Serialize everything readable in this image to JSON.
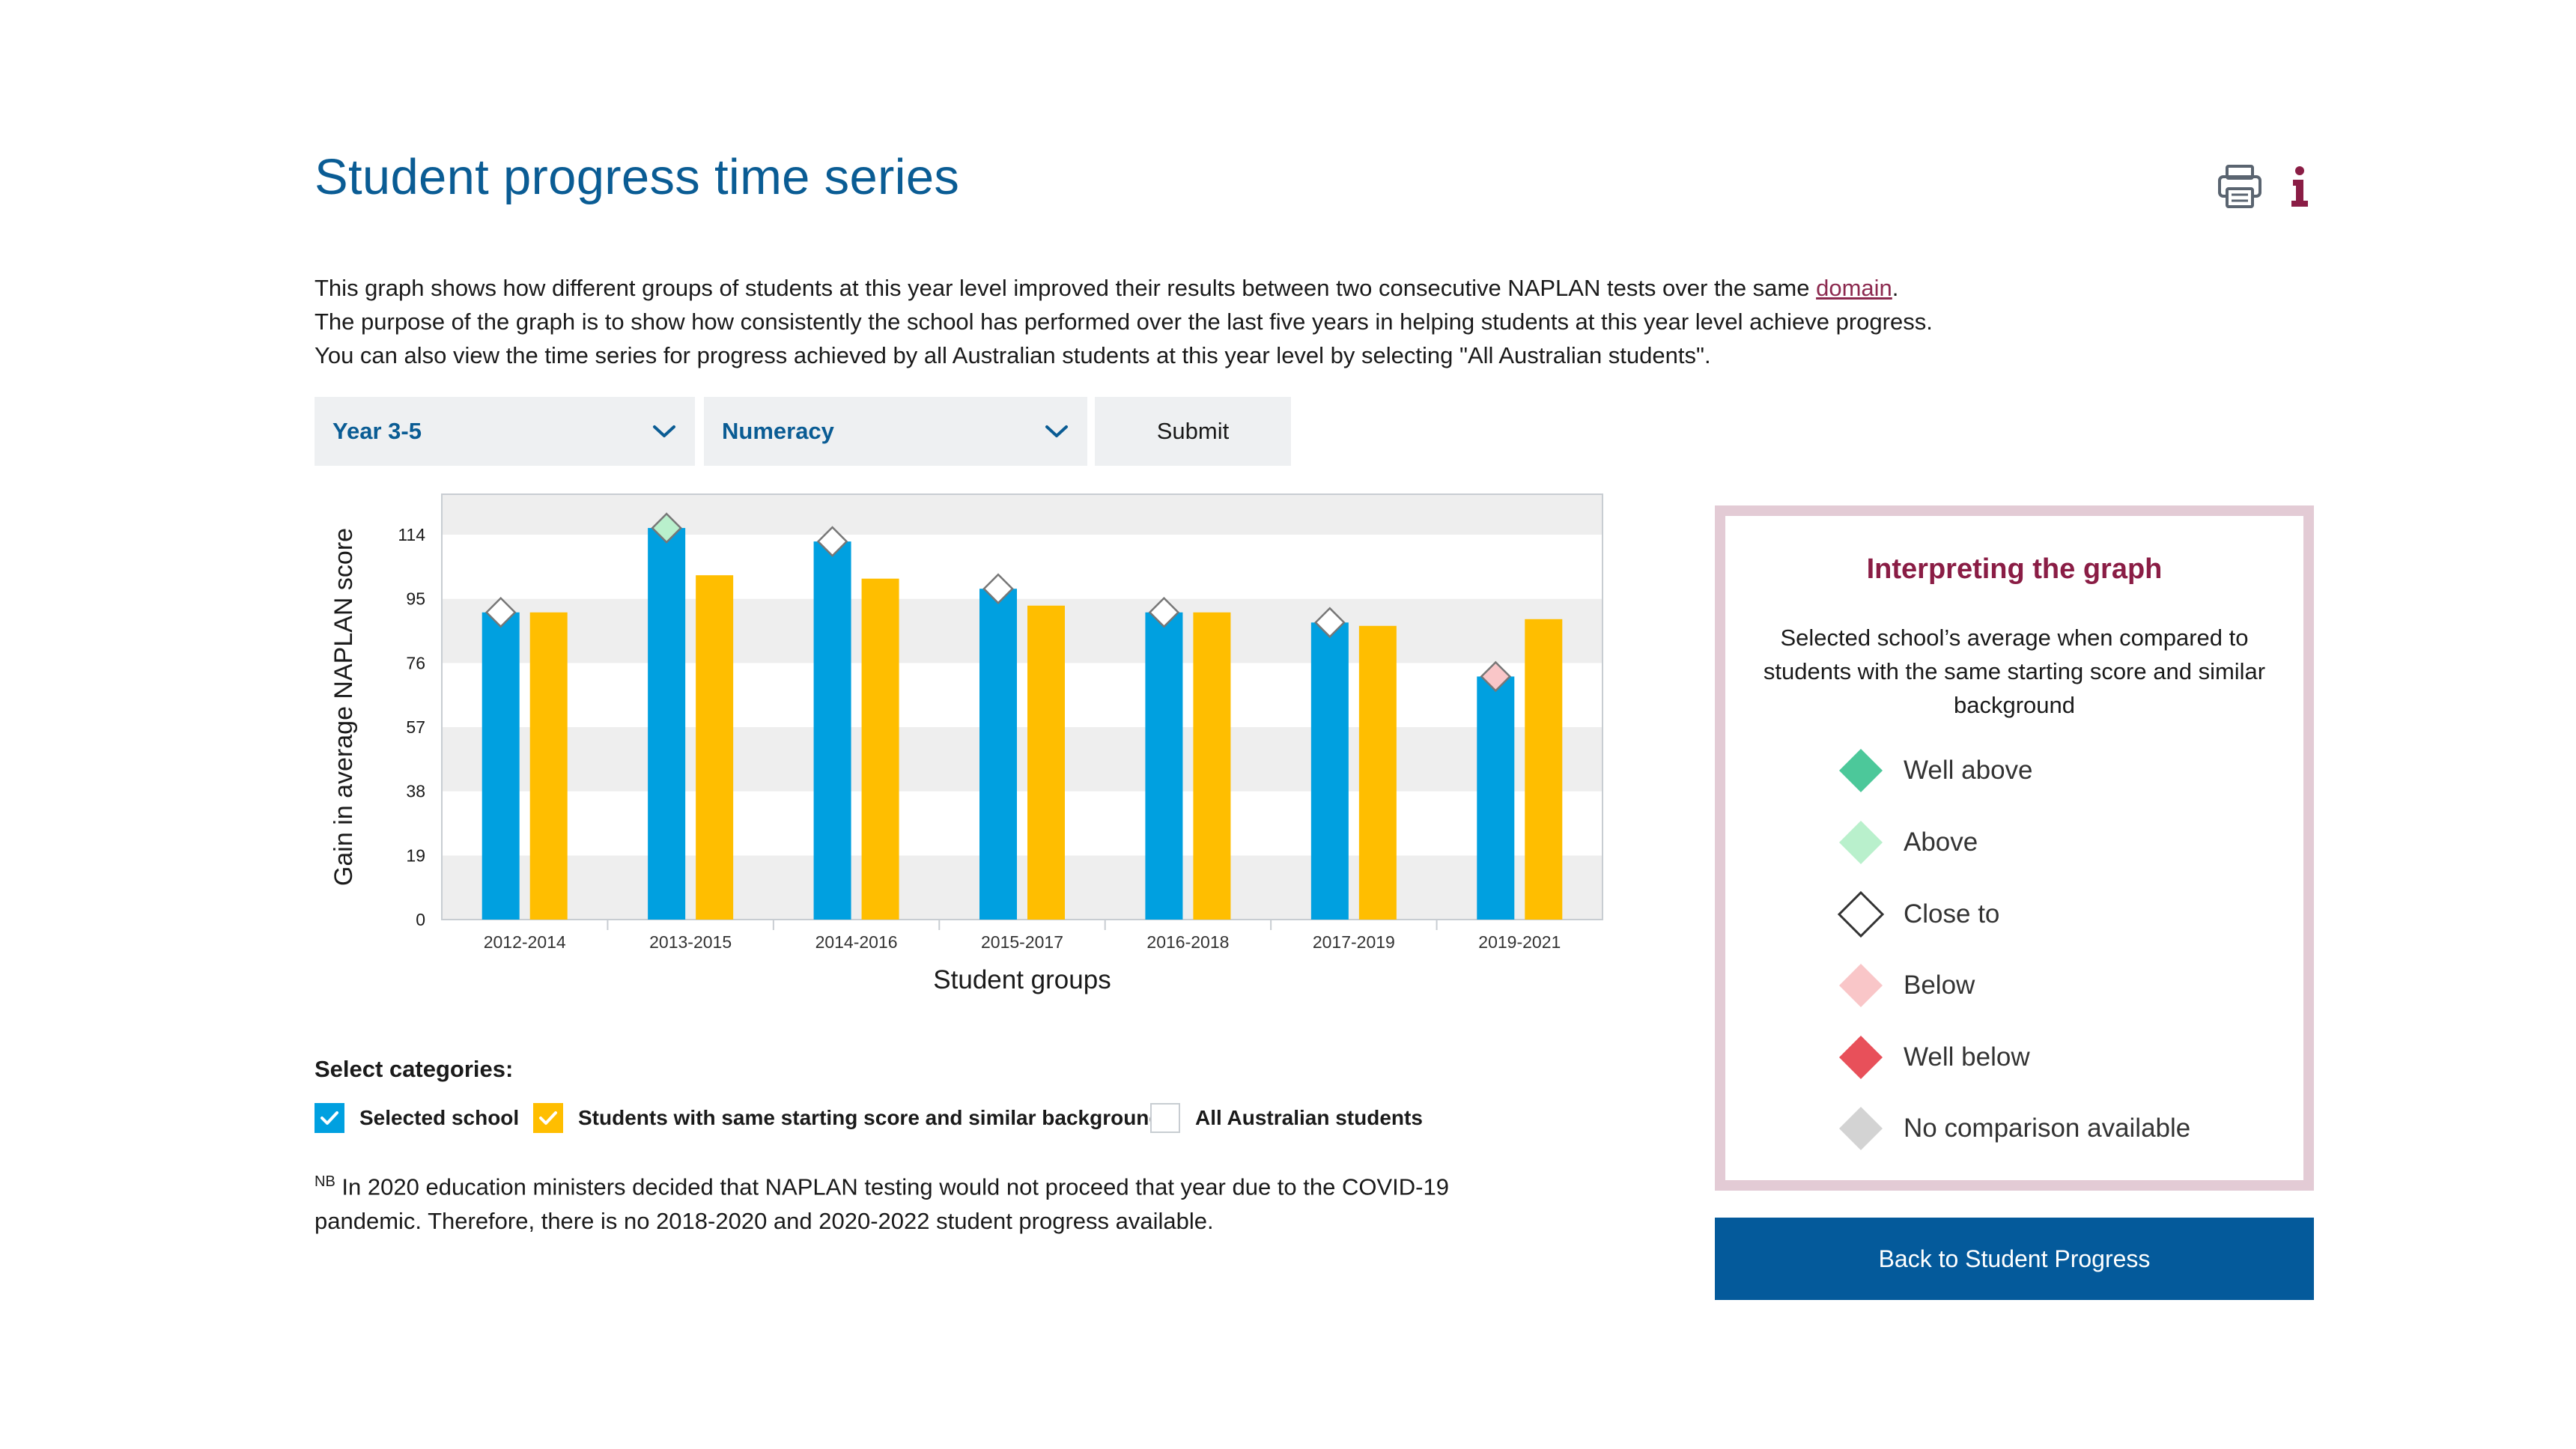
{
  "header": {
    "title": "Student progress time series"
  },
  "icons": {
    "print": "printer-icon",
    "info": "info-icon",
    "dropdown": "chevron-down-icon",
    "check": "check-icon"
  },
  "description": {
    "line1_prefix": "This graph shows how different groups of students at this year level improved their results between two consecutive NAPLAN tests over the same ",
    "domain_link": "domain",
    "line1_suffix": ".",
    "line2": "The purpose of the graph is to show how consistently the school has performed over the last five years in helping students at this year level achieve progress.",
    "line3": "You can also view the time series for progress achieved by all Australian students at this year level by selecting \"All Australian students\"."
  },
  "controls": {
    "year_value": "Year 3-5",
    "domain_value": "Numeracy",
    "submit_label": "Submit"
  },
  "colors": {
    "school": "#00a0e0",
    "similar": "#ffbe00",
    "well_above": "#4cc89a",
    "above": "#b9f0cc",
    "close_to": "#ffffff",
    "below": "#f9c6c8",
    "well_below": "#e8505a",
    "no_comparison": "#d3d3d3",
    "title_blue": "#0a5c94",
    "back_button": "#045a9b"
  },
  "chart_data": {
    "type": "bar",
    "title": "",
    "xlabel": "Student groups",
    "ylabel": "Gain in average NAPLAN score",
    "ylim": [
      0,
      126
    ],
    "yticks": [
      0,
      19,
      38,
      57,
      76,
      95,
      114
    ],
    "grid": "alternating bands",
    "categories": [
      "2012-2014",
      "2013-2015",
      "2014-2016",
      "2015-2017",
      "2016-2018",
      "2017-2019",
      "2019-2021"
    ],
    "series": [
      {
        "name": "Selected school",
        "color": "#00a0e0",
        "values": [
          91,
          116,
          112,
          98,
          91,
          88,
          72
        ],
        "comparison": [
          "close_to",
          "above",
          "close_to",
          "close_to",
          "close_to",
          "close_to",
          "below"
        ]
      },
      {
        "name": "Students with same starting score and similar background",
        "color": "#ffbe00",
        "values": [
          91,
          102,
          101,
          93,
          91,
          87,
          89
        ]
      }
    ]
  },
  "legend": {
    "title": "Interpreting the graph",
    "subtitle": "Selected school’s average when compared to students with the same starting score and similar background",
    "items": [
      {
        "label": "Well above",
        "color": "#4cc89a"
      },
      {
        "label": "Above",
        "color": "#b9f0cc"
      },
      {
        "label": "Close to",
        "color": "#ffffff"
      },
      {
        "label": "Below",
        "color": "#f9c6c8"
      },
      {
        "label": "Well below",
        "color": "#e8505a"
      },
      {
        "label": "No comparison available",
        "color": "#d3d3d3"
      }
    ]
  },
  "back_button_label": "Back to Student Progress",
  "categories": {
    "heading": "Select categories:",
    "items": [
      {
        "label": "Selected school",
        "checked": true,
        "color": "#00a0e0"
      },
      {
        "label": "Students with same starting score and similar background",
        "checked": true,
        "color": "#ffbe00"
      },
      {
        "label": "All Australian students",
        "checked": false,
        "color": "#ffffff"
      }
    ]
  },
  "note": {
    "prefix": "NB",
    "text": "In 2020 education ministers decided that NAPLAN testing would not proceed that year due to the COVID-19 pandemic. Therefore, there is no 2018-2020 and 2020-2022 student progress available."
  }
}
